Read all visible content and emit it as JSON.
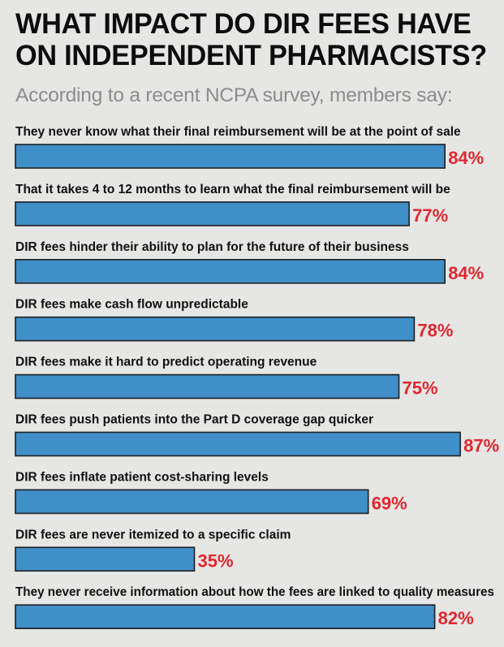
{
  "chart_data": {
    "type": "bar",
    "orientation": "horizontal",
    "title": "WHAT IMPACT DO DIR FEES HAVE ON INDEPENDENT PHARMACISTS?",
    "subtitle": "According to a recent NCPA survey, members say:",
    "categories": [
      "They never know what their final reimbursement will be at the point of sale",
      "That it takes 4 to 12 months to learn what the final reimbursement will be",
      "DIR fees hinder their ability to plan for the future of their business",
      "DIR fees make cash flow unpredictable",
      "DIR fees make it hard to predict operating revenue",
      "DIR fees push patients into the Part D coverage gap quicker",
      "DIR fees inflate patient cost-sharing levels",
      "DIR fees are never itemized to a specific claim",
      "They never receive information about how the fees are linked to quality measures"
    ],
    "values": [
      84,
      77,
      84,
      78,
      75,
      87,
      69,
      35,
      82
    ],
    "value_labels": [
      "84%",
      "77%",
      "84%",
      "78%",
      "75%",
      "87%",
      "69%",
      "35%",
      "82%"
    ],
    "unit": "%",
    "xlim": [
      0,
      100
    ],
    "xlabel": "",
    "ylabel": "",
    "grid": false,
    "legend": "none",
    "colors": {
      "bar": "#3f8fc9",
      "bar_outline": "#1f1f1f",
      "value_label": "#e0272e",
      "title": "#0d0d0d",
      "subtitle": "#8c8c8c",
      "background": "#e6e6e5"
    }
  }
}
